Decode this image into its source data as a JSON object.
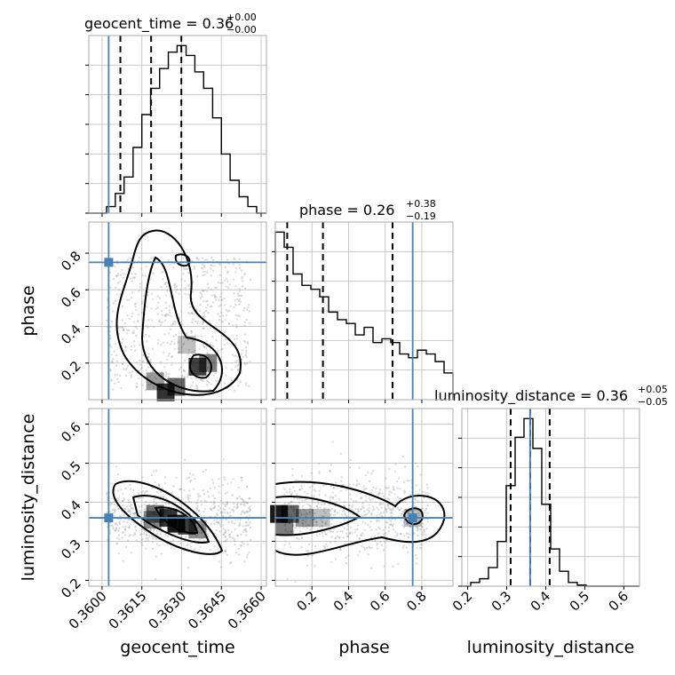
{
  "chart_data": {
    "type": "corner",
    "parameters": [
      {
        "key": "geocent_time",
        "label": "geocent_time",
        "range": [
          0.3595,
          0.3662
        ],
        "ticks": [
          0.36,
          0.3615,
          0.363,
          0.3645,
          0.366
        ],
        "tick_labels": [
          "0.3600",
          "0.3615",
          "0.3630",
          "0.3645",
          "0.3660"
        ],
        "truth": 0.36025
      },
      {
        "key": "phase",
        "label": "phase",
        "range": [
          0.0,
          0.97
        ],
        "ticks": [
          0.2,
          0.4,
          0.6,
          0.8
        ],
        "tick_labels": [
          "0.2",
          "0.4",
          "0.6",
          "0.8"
        ],
        "truth": 0.75
      },
      {
        "key": "luminosity_distance",
        "label": "luminosity_distance",
        "range": [
          0.185,
          0.64
        ],
        "ticks": [
          0.2,
          0.3,
          0.4,
          0.5,
          0.6
        ],
        "tick_labels": [
          "0.2",
          "0.3",
          "0.4",
          "0.5",
          "0.6"
        ],
        "truth": 0.36
      }
    ],
    "titles": [
      {
        "text": "geocent_time = 0.36",
        "plus": "+0.00",
        "minus": "−0.00"
      },
      {
        "text": "phase = 0.26",
        "plus": "+0.38",
        "minus": "−0.19"
      },
      {
        "text": "luminosity_distance = 0.36",
        "plus": "+0.05",
        "minus": "−0.05"
      }
    ],
    "marginals": [
      {
        "bin_edges": [
          0.3595,
          0.35983,
          0.36017,
          0.3605,
          0.36083,
          0.36117,
          0.3615,
          0.36183,
          0.36217,
          0.3625,
          0.36283,
          0.36317,
          0.3635,
          0.36383,
          0.36417,
          0.3645,
          0.36483,
          0.36517,
          0.3655,
          0.36583,
          0.36617,
          0.3662
        ],
        "counts": [
          0,
          0,
          2,
          6,
          11,
          20,
          30,
          38,
          44,
          49,
          51,
          48,
          43,
          38,
          29,
          18,
          10,
          5,
          2,
          0,
          0
        ],
        "quantiles": [
          0.36069,
          0.36185,
          0.36299
        ]
      },
      {
        "bin_edges": [
          0.0,
          0.0485,
          0.097,
          0.1455,
          0.194,
          0.2425,
          0.291,
          0.3395,
          0.388,
          0.4365,
          0.485,
          0.5335,
          0.582,
          0.6305,
          0.679,
          0.7275,
          0.776,
          0.8245,
          0.873,
          0.9215,
          0.97
        ],
        "counts": [
          44,
          40,
          33,
          30,
          29,
          27,
          23,
          21,
          20,
          17,
          19,
          15,
          16,
          15,
          12,
          11,
          13,
          12,
          10,
          7
        ],
        "quantiles": [
          0.065,
          0.26,
          0.64
        ]
      },
      {
        "bin_edges": [
          0.185,
          0.2077,
          0.2305,
          0.2532,
          0.276,
          0.2987,
          0.3215,
          0.3442,
          0.367,
          0.3897,
          0.4125,
          0.4352,
          0.458,
          0.4807,
          0.5035,
          0.5262,
          0.549,
          0.5717,
          0.5945,
          0.6172,
          0.64
        ],
        "counts": [
          0,
          1,
          2,
          5,
          12,
          27,
          40,
          45,
          37,
          22,
          10,
          4,
          1,
          0.3,
          0,
          0,
          0,
          0,
          0,
          0
        ],
        "quantiles": [
          0.31,
          0.36,
          0.41
        ]
      }
    ],
    "grid": true
  }
}
